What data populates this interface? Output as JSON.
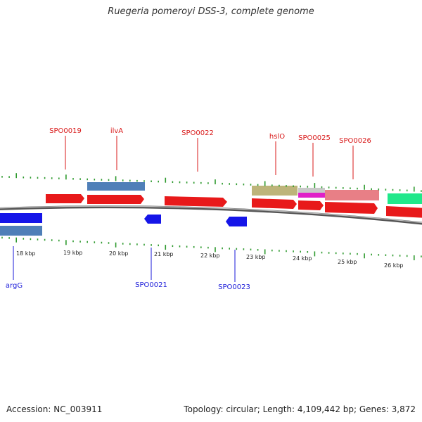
{
  "title": "Ruegeria pomeroyi DSS-3, complete genome",
  "accession_text": "Accession: NC_003911",
  "summary_text": "Topology: circular; Length: 4,109,442 bp; Genes: 3,872",
  "colors": {
    "forward_cds": "#e8191a",
    "reverse_cds": "#1515e8",
    "rna_blue": "#4f7fb8",
    "olive": "#bdb47a",
    "pink": "#e87f86",
    "magenta": "#e020c8",
    "green": "#20e88a",
    "tick": "#2e9a2e",
    "backbone": "#808080",
    "top_label": "#d91a1a",
    "bottom_label": "#1a1ad9"
  },
  "scale": {
    "unit": "kbp",
    "labels": [
      "18 kbp",
      "19 kbp",
      "20 kbp",
      "21 kbp",
      "22 kbp",
      "23 kbp",
      "24 kbp",
      "25 kbp",
      "26 kbp"
    ]
  },
  "forward_labels": [
    "SPO0019",
    "ilvA",
    "SPO0022",
    "hslO",
    "SPO0025",
    "SPO0026"
  ],
  "reverse_labels": [
    "argG",
    "SPO0021",
    "SPO0023"
  ]
}
